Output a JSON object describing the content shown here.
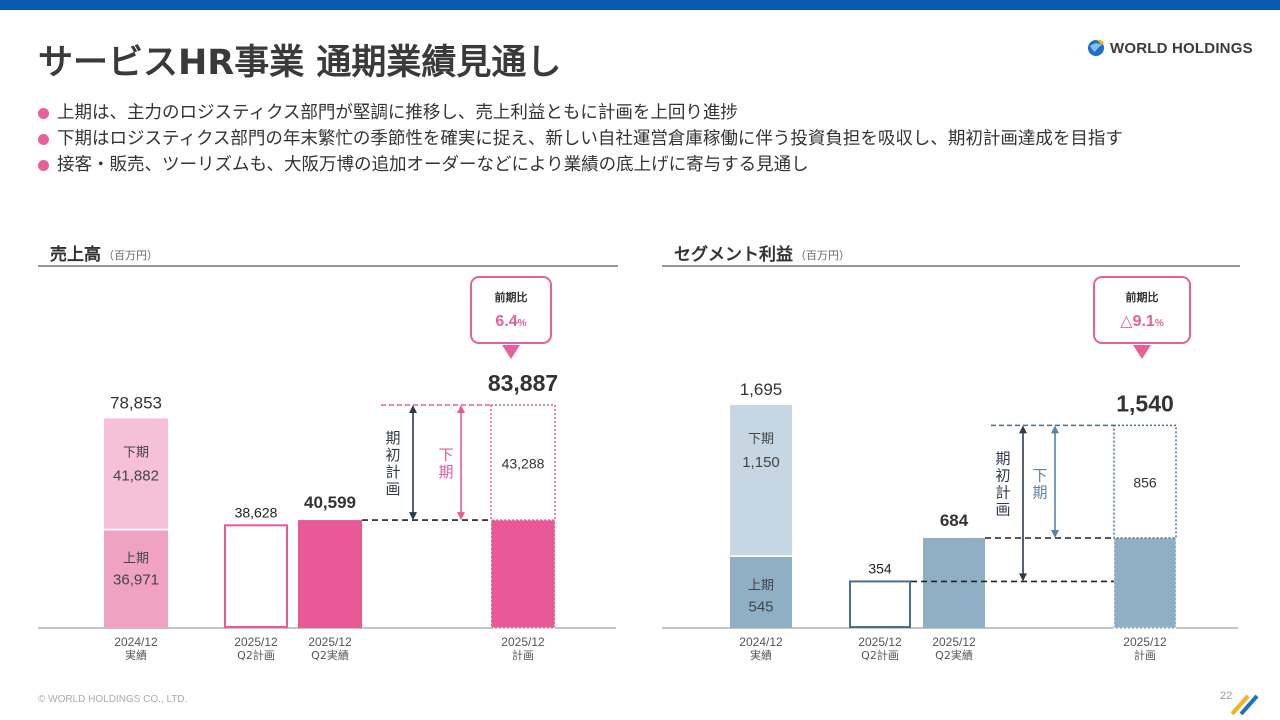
{
  "title": "サービスHR事業 通期業績見通し",
  "logo": {
    "text": "WORLD HOLDINGS"
  },
  "bullets": [
    "上期は、主力のロジスティクス部門が堅調に推移し、売上利益ともに計画を上回り進捗",
    "下期はロジスティクス部門の年末繁忙の季節性を確実に捉え、新しい自社運営倉庫稼働に伴う投資負担を吸収し、期初計画達成を目指す",
    "接客・販売、ツーリズムも、大阪万博の追加オーダーなどにより業績の底上げに寄与する見通し"
  ],
  "footer": "© WORLD HOLDINGS CO., LTD.",
  "page_number": "22",
  "chart_data": [
    {
      "type": "bar",
      "title": "売上高",
      "unit": "（百万円）",
      "categories": [
        {
          "line1": "2024/12",
          "line2": "実績"
        },
        {
          "line1": "2025/12",
          "line2": "Q2計画"
        },
        {
          "line1": "2025/12",
          "line2": "Q2実績"
        },
        {
          "line1": "2025/12",
          "line2": "計画"
        }
      ],
      "ymax": 83887,
      "actual_2024": {
        "total": "78,853",
        "first_half": 36971,
        "first_half_label": "上期",
        "first_half_text": "36,971",
        "second_half": 41882,
        "second_half_label": "下期",
        "second_half_text": "41,882"
      },
      "q2_plan": {
        "value": 38628,
        "text": "38,628"
      },
      "q2_actual": {
        "value": 40599,
        "text": "40,599"
      },
      "full_year_plan": {
        "total": 83887,
        "total_text": "83,887",
        "first_half": 40599,
        "second_half": 43288,
        "second_half_text": "43,288"
      },
      "arrow_initial_plan": "期初計画",
      "arrow_second_half": "下期",
      "callout": {
        "label": "前期比",
        "value": "6.4",
        "unit": "%"
      },
      "colors": {
        "light": "#f5c0d8",
        "mid": "#f0a2c5",
        "main": "#e85a95",
        "callout": "#e8609a",
        "dark": "#2e3b4e",
        "text_accent": "#e8609a"
      }
    },
    {
      "type": "bar",
      "title": "セグメント利益",
      "unit": "（百万円）",
      "categories": [
        {
          "line1": "2024/12",
          "line2": "実績"
        },
        {
          "line1": "2025/12",
          "line2": "Q2計画"
        },
        {
          "line1": "2025/12",
          "line2": "Q2実績"
        },
        {
          "line1": "2025/12",
          "line2": "計画"
        }
      ],
      "ymax": 1695,
      "actual_2024": {
        "total": "1,695",
        "first_half": 545,
        "first_half_label": "上期",
        "first_half_text": "545",
        "second_half": 1150,
        "second_half_label": "下期",
        "second_half_text": "1,150"
      },
      "q2_plan": {
        "value": 354,
        "text": "354"
      },
      "q2_actual": {
        "value": 684,
        "text": "684"
      },
      "full_year_plan": {
        "total": 1540,
        "total_text": "1,540",
        "first_half": 684,
        "second_half": 856,
        "second_half_text": "856"
      },
      "arrow_initial_plan": "期初計画",
      "arrow_second_half": "下期",
      "callout": {
        "label": "前期比",
        "value": "△9.1",
        "unit": "%"
      },
      "colors": {
        "light": "#c6d6e2",
        "mid": "#8fafc4",
        "main": "#8fafc4",
        "callout": "#e8609a",
        "dark": "#2e3b4e",
        "text_accent": "#e8609a"
      }
    }
  ]
}
